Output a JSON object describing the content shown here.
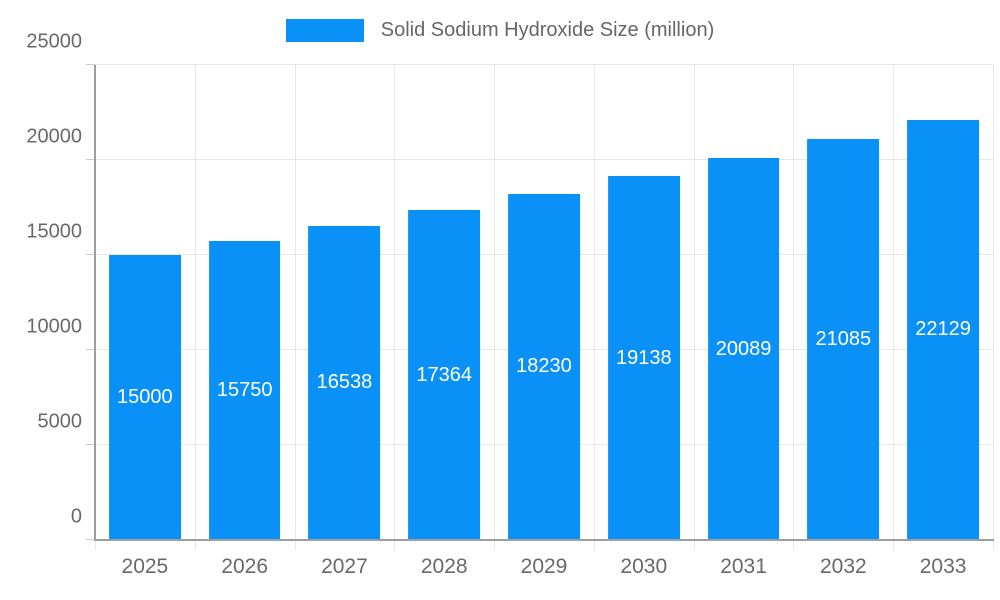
{
  "legend": {
    "label": "Solid Sodium Hydroxide Size (million)"
  },
  "chart_data": {
    "type": "bar",
    "title": "Solid Sodium Hydroxide Size (million)",
    "categories": [
      "2025",
      "2026",
      "2027",
      "2028",
      "2029",
      "2030",
      "2031",
      "2032",
      "2033"
    ],
    "series": [
      {
        "name": "Solid Sodium Hydroxide Size (million)",
        "values": [
          15000,
          15750,
          16538,
          17364,
          18230,
          19138,
          20089,
          21085,
          22129
        ]
      }
    ],
    "xlabel": "",
    "ylabel": "",
    "ylim": [
      0,
      25000
    ],
    "yticks": [
      0,
      5000,
      10000,
      15000,
      20000,
      25000
    ],
    "grid": true,
    "legend_position": "top",
    "value_labels": "inside-center",
    "colors": {
      "bar": "#0a91f7",
      "value_label": "#ffffff",
      "grid": "#e6e6e6",
      "axis": "#9e9e9e",
      "tick_mark": "#cccccc",
      "tick_label": "#696969",
      "legend_label": "#666666"
    }
  }
}
